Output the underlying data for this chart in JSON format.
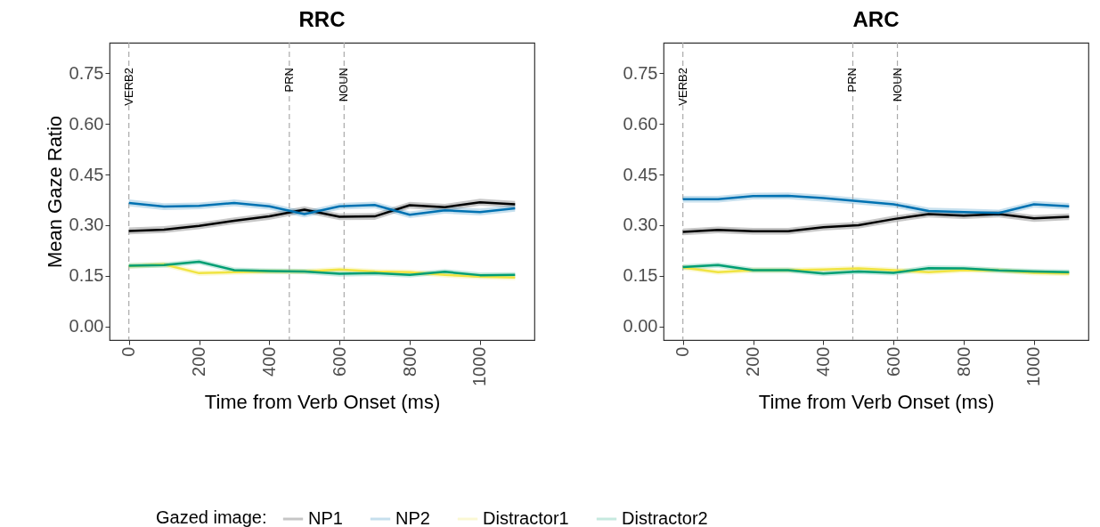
{
  "chart_data": [
    {
      "type": "line",
      "title": "RRC",
      "xlabel": "Time from Verb Onset (ms)",
      "ylabel": "Mean Gaze Ratio",
      "legend_title": "Gazed image:",
      "legend": "bottom",
      "grid": false,
      "line_style": "solid",
      "x": [
        0,
        100,
        200,
        300,
        400,
        500,
        600,
        700,
        800,
        900,
        1000,
        1100
      ],
      "xlim": [
        -55,
        1155
      ],
      "xticks": [
        0,
        200,
        400,
        600,
        800,
        1000
      ],
      "ylim": [
        -0.04,
        0.84
      ],
      "yticks": [
        {
          "value": 0,
          "label": "0.00"
        },
        {
          "value": 0.15,
          "label": "0.15"
        },
        {
          "value": 0.3,
          "label": "0.30"
        },
        {
          "value": 0.45,
          "label": "0.45"
        },
        {
          "value": 0.6,
          "label": "0.60"
        },
        {
          "value": 0.75,
          "label": "0.75"
        }
      ],
      "series": [
        {
          "name": "NP1",
          "color": "#000000",
          "values": [
            0.283,
            0.287,
            0.298,
            0.313,
            0.326,
            0.346,
            0.325,
            0.326,
            0.359,
            0.353,
            0.368,
            0.362
          ],
          "lower": [
            0.273,
            0.277,
            0.288,
            0.303,
            0.316,
            0.336,
            0.315,
            0.316,
            0.349,
            0.343,
            0.358,
            0.352
          ],
          "upper": [
            0.293,
            0.297,
            0.308,
            0.323,
            0.336,
            0.356,
            0.335,
            0.336,
            0.369,
            0.363,
            0.378,
            0.372
          ]
        },
        {
          "name": "NP2",
          "color": "#0072b2",
          "values": [
            0.366,
            0.355,
            0.357,
            0.366,
            0.356,
            0.333,
            0.356,
            0.36,
            0.331,
            0.344,
            0.339,
            0.35
          ],
          "lower": [
            0.356,
            0.345,
            0.347,
            0.356,
            0.346,
            0.323,
            0.346,
            0.35,
            0.321,
            0.334,
            0.329,
            0.34
          ],
          "upper": [
            0.376,
            0.365,
            0.367,
            0.376,
            0.366,
            0.343,
            0.366,
            0.37,
            0.341,
            0.354,
            0.349,
            0.36
          ]
        },
        {
          "name": "Distractor1",
          "color": "#f0e442",
          "values": [
            0.179,
            0.184,
            0.158,
            0.161,
            0.163,
            0.163,
            0.169,
            0.163,
            0.161,
            0.153,
            0.148,
            0.145
          ],
          "lower": [
            0.171,
            0.176,
            0.15,
            0.153,
            0.155,
            0.155,
            0.161,
            0.155,
            0.153,
            0.145,
            0.14,
            0.137
          ],
          "upper": [
            0.187,
            0.192,
            0.166,
            0.169,
            0.171,
            0.171,
            0.177,
            0.171,
            0.169,
            0.161,
            0.156,
            0.153
          ]
        },
        {
          "name": "Distractor2",
          "color": "#009e73",
          "values": [
            0.18,
            0.182,
            0.192,
            0.167,
            0.164,
            0.163,
            0.156,
            0.158,
            0.153,
            0.162,
            0.152,
            0.153
          ],
          "lower": [
            0.172,
            0.174,
            0.184,
            0.159,
            0.156,
            0.155,
            0.148,
            0.15,
            0.145,
            0.154,
            0.144,
            0.145
          ],
          "upper": [
            0.188,
            0.19,
            0.2,
            0.175,
            0.172,
            0.171,
            0.164,
            0.166,
            0.161,
            0.17,
            0.16,
            0.161
          ]
        }
      ],
      "ref_lines": [
        {
          "axis": "x",
          "value": 0,
          "label": "VERB2",
          "color": "#aaaaaa",
          "line_style": "dashed"
        },
        {
          "axis": "x",
          "value": 457,
          "label": "PRN",
          "color": "#aaaaaa",
          "line_style": "dashed"
        },
        {
          "axis": "x",
          "value": 613,
          "label": "NOUN",
          "color": "#aaaaaa",
          "line_style": "dashed"
        }
      ]
    },
    {
      "type": "line",
      "title": "ARC",
      "xlabel": "Time from Verb Onset (ms)",
      "grid": false,
      "line_style": "solid",
      "x": [
        0,
        100,
        200,
        300,
        400,
        500,
        600,
        700,
        800,
        900,
        1000,
        1100
      ],
      "xlim": [
        -55,
        1155
      ],
      "xticks": [
        0,
        200,
        400,
        600,
        800,
        1000
      ],
      "ylim": [
        -0.04,
        0.84
      ],
      "yticks": [
        {
          "value": 0,
          "label": "0.00"
        },
        {
          "value": 0.15,
          "label": "0.15"
        },
        {
          "value": 0.3,
          "label": "0.30"
        },
        {
          "value": 0.45,
          "label": "0.45"
        },
        {
          "value": 0.6,
          "label": "0.60"
        },
        {
          "value": 0.75,
          "label": "0.75"
        }
      ],
      "series": [
        {
          "name": "NP1",
          "color": "#000000",
          "values": [
            0.28,
            0.286,
            0.282,
            0.282,
            0.294,
            0.3,
            0.318,
            0.333,
            0.328,
            0.333,
            0.32,
            0.325
          ],
          "lower": [
            0.27,
            0.276,
            0.272,
            0.272,
            0.284,
            0.29,
            0.308,
            0.323,
            0.318,
            0.323,
            0.31,
            0.315
          ],
          "upper": [
            0.29,
            0.296,
            0.292,
            0.292,
            0.304,
            0.31,
            0.328,
            0.343,
            0.338,
            0.343,
            0.33,
            0.335
          ]
        },
        {
          "name": "NP2",
          "color": "#0072b2",
          "values": [
            0.377,
            0.377,
            0.386,
            0.387,
            0.38,
            0.371,
            0.362,
            0.342,
            0.339,
            0.336,
            0.362,
            0.356
          ],
          "lower": [
            0.367,
            0.367,
            0.376,
            0.377,
            0.37,
            0.361,
            0.352,
            0.332,
            0.329,
            0.326,
            0.352,
            0.346
          ],
          "upper": [
            0.387,
            0.387,
            0.396,
            0.397,
            0.39,
            0.381,
            0.372,
            0.352,
            0.349,
            0.346,
            0.372,
            0.366
          ]
        },
        {
          "name": "Distractor1",
          "color": "#f0e442",
          "values": [
            0.175,
            0.161,
            0.167,
            0.167,
            0.169,
            0.172,
            0.167,
            0.161,
            0.167,
            0.166,
            0.159,
            0.157
          ],
          "lower": [
            0.167,
            0.153,
            0.159,
            0.159,
            0.161,
            0.164,
            0.159,
            0.153,
            0.159,
            0.158,
            0.151,
            0.149
          ],
          "upper": [
            0.183,
            0.169,
            0.175,
            0.175,
            0.177,
            0.18,
            0.175,
            0.169,
            0.175,
            0.174,
            0.167,
            0.165
          ]
        },
        {
          "name": "Distractor2",
          "color": "#009e73",
          "values": [
            0.176,
            0.182,
            0.167,
            0.167,
            0.157,
            0.163,
            0.159,
            0.173,
            0.172,
            0.166,
            0.163,
            0.161
          ],
          "lower": [
            0.168,
            0.174,
            0.159,
            0.159,
            0.149,
            0.155,
            0.151,
            0.165,
            0.164,
            0.158,
            0.155,
            0.153
          ],
          "upper": [
            0.184,
            0.19,
            0.175,
            0.175,
            0.165,
            0.171,
            0.167,
            0.181,
            0.18,
            0.174,
            0.171,
            0.169
          ]
        }
      ],
      "ref_lines": [
        {
          "axis": "x",
          "value": 0,
          "label": "VERB2",
          "color": "#aaaaaa",
          "line_style": "dashed"
        },
        {
          "axis": "x",
          "value": 484,
          "label": "PRN",
          "color": "#aaaaaa",
          "line_style": "dashed"
        },
        {
          "axis": "x",
          "value": 611,
          "label": "NOUN",
          "color": "#aaaaaa",
          "line_style": "dashed"
        }
      ]
    }
  ]
}
